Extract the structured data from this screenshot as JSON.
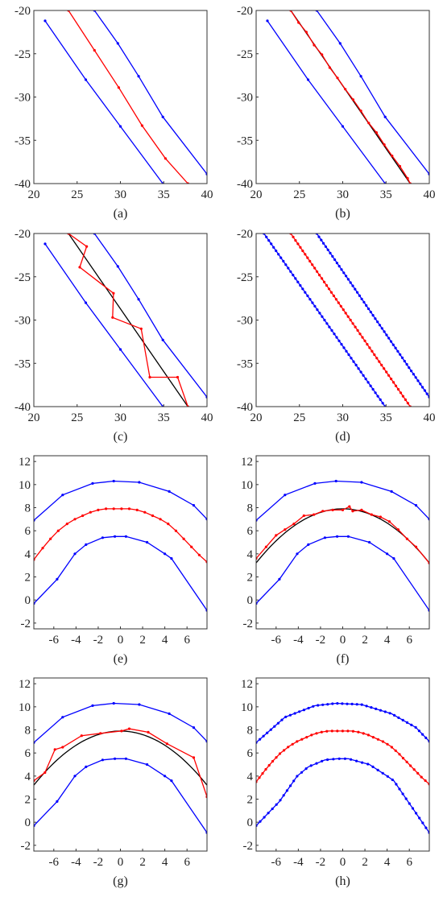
{
  "chart_data": [
    {
      "type": "line",
      "caption": "(a)",
      "xlim": [
        20,
        40
      ],
      "ylim": [
        -40,
        -20
      ],
      "xticks": [
        20,
        25,
        30,
        35,
        40
      ],
      "yticks": [
        -20,
        -25,
        -30,
        -35,
        -40
      ],
      "grid": false,
      "series": [
        {
          "color": "#0000ff",
          "x": [
            21.3,
            26.0,
            30.0,
            34.9
          ],
          "y": [
            -21.2,
            -28.0,
            -33.4,
            -40.0
          ],
          "markers": true
        },
        {
          "color": "#ff0000",
          "x": [
            24.0,
            27.0,
            29.8,
            32.5,
            35.2,
            37.8
          ],
          "y": [
            -20.0,
            -24.6,
            -28.9,
            -33.3,
            -37.1,
            -40.0
          ],
          "markers": true
        },
        {
          "color": "#0000ff",
          "x": [
            27.0,
            29.7,
            32.1,
            34.9,
            40.0
          ],
          "y": [
            -20.0,
            -23.8,
            -27.6,
            -32.3,
            -38.9
          ],
          "markers": true
        }
      ]
    },
    {
      "type": "line",
      "caption": "(b)",
      "xlim": [
        20,
        40
      ],
      "ylim": [
        -40,
        -20
      ],
      "xticks": [
        20,
        25,
        30,
        35,
        40
      ],
      "yticks": [
        -20,
        -25,
        -30,
        -35,
        -40
      ],
      "grid": false,
      "series": [
        {
          "color": "#0000ff",
          "x": [
            21.3,
            26.0,
            30.0,
            34.9
          ],
          "y": [
            -21.2,
            -28.0,
            -33.4,
            -40.0
          ],
          "markers": true
        },
        {
          "color": "#000000",
          "x": [
            24.0,
            37.8
          ],
          "y": [
            -20.0,
            -40.0
          ],
          "markers": false
        },
        {
          "color": "#ff0000",
          "x": [
            24.0,
            24.9,
            25.8,
            26.7,
            27.6,
            28.5,
            29.4,
            30.3,
            31.2,
            32.1,
            33.0,
            33.9,
            34.8,
            35.7,
            36.6,
            37.5,
            37.8
          ],
          "y": [
            -20.0,
            -21.4,
            -22.5,
            -24.0,
            -25.1,
            -26.6,
            -27.8,
            -29.1,
            -30.3,
            -31.6,
            -33.0,
            -34.1,
            -35.5,
            -36.8,
            -38.0,
            -39.4,
            -40.0
          ],
          "markers": true
        },
        {
          "color": "#0000ff",
          "x": [
            27.0,
            29.7,
            32.1,
            34.9,
            40.0
          ],
          "y": [
            -20.0,
            -23.8,
            -27.6,
            -32.3,
            -38.9
          ],
          "markers": true
        }
      ]
    },
    {
      "type": "line",
      "caption": "(c)",
      "xlim": [
        20,
        40
      ],
      "ylim": [
        -40,
        -20
      ],
      "xticks": [
        20,
        25,
        30,
        35,
        40
      ],
      "yticks": [
        -20,
        -25,
        -30,
        -35,
        -40
      ],
      "grid": false,
      "series": [
        {
          "color": "#0000ff",
          "x": [
            21.3,
            26.0,
            30.0,
            34.9
          ],
          "y": [
            -21.2,
            -28.0,
            -33.4,
            -40.0
          ],
          "markers": true
        },
        {
          "color": "#000000",
          "x": [
            24.0,
            37.8
          ],
          "y": [
            -20.0,
            -40.0
          ],
          "markers": false
        },
        {
          "color": "#ff0000",
          "x": [
            24.0,
            26.1,
            25.3,
            29.2,
            29.1,
            32.4,
            33.4,
            36.6,
            37.8
          ],
          "y": [
            -20.0,
            -21.5,
            -23.9,
            -26.9,
            -29.7,
            -31.0,
            -36.6,
            -36.6,
            -40.0
          ],
          "markers": true
        },
        {
          "color": "#0000ff",
          "x": [
            27.0,
            29.7,
            32.1,
            34.9,
            40.0
          ],
          "y": [
            -20.0,
            -23.8,
            -27.6,
            -32.3,
            -38.9
          ],
          "markers": true
        }
      ]
    },
    {
      "type": "line",
      "caption": "(d)",
      "xlim": [
        20,
        40
      ],
      "ylim": [
        -40,
        -20
      ],
      "xticks": [
        20,
        25,
        30,
        35,
        40
      ],
      "yticks": [
        -20,
        -25,
        -30,
        -35,
        -40
      ],
      "grid": false,
      "series": [
        {
          "color": "#0000ff",
          "x": [
            20.9,
            34.9
          ],
          "y": [
            -20.0,
            -40.0
          ],
          "markers": true,
          "dense": 50
        },
        {
          "color": "#ff0000",
          "x": [
            24.0,
            37.8
          ],
          "y": [
            -20.0,
            -40.0
          ],
          "markers": true,
          "dense": 50
        },
        {
          "color": "#0000ff",
          "x": [
            27.0,
            40.0
          ],
          "y": [
            -20.0,
            -38.9
          ],
          "markers": true,
          "dense": 50
        }
      ]
    },
    {
      "type": "line",
      "caption": "(e)",
      "xlim": [
        -7.8,
        7.8
      ],
      "ylim": [
        -2.5,
        12.5
      ],
      "xticks": [
        -6,
        -4,
        -2,
        0,
        2,
        4,
        6
      ],
      "yticks": [
        12,
        10,
        8,
        6,
        4,
        2,
        0,
        -2
      ],
      "grid": false,
      "series": [
        {
          "color": "#0000ff",
          "x": [
            -7.8,
            -5.2,
            -2.5,
            -0.6,
            1.7,
            4.4,
            6.6,
            7.8
          ],
          "y": [
            6.9,
            9.1,
            10.1,
            10.3,
            10.2,
            9.4,
            8.2,
            7.0
          ],
          "markers": true
        },
        {
          "color": "#ff0000",
          "x": [
            -7.8,
            -7.0,
            -6.3,
            -5.6,
            -4.8,
            -4.1,
            -3.4,
            -2.7,
            -2.0,
            -1.3,
            -0.6,
            0.1,
            0.8,
            1.5,
            2.2,
            2.9,
            3.6,
            4.3,
            5.0,
            5.7,
            6.4,
            7.1,
            7.8
          ],
          "y": [
            3.5,
            4.5,
            5.3,
            6.0,
            6.6,
            7.0,
            7.3,
            7.6,
            7.8,
            7.9,
            7.9,
            7.9,
            7.9,
            7.8,
            7.6,
            7.3,
            7.0,
            6.6,
            6.0,
            5.3,
            4.6,
            3.9,
            3.3
          ],
          "markers": true
        },
        {
          "color": "#0000ff",
          "x": [
            -7.8,
            -5.7,
            -4.1,
            -3.1,
            -1.6,
            -0.5,
            0.5,
            2.4,
            4.0,
            4.6,
            7.8
          ],
          "y": [
            -0.3,
            1.8,
            4.0,
            4.8,
            5.4,
            5.5,
            5.5,
            5.0,
            4.0,
            3.6,
            -0.9
          ],
          "markers": true
        }
      ]
    },
    {
      "type": "line",
      "caption": "(f)",
      "xlim": [
        -7.8,
        7.8
      ],
      "ylim": [
        -2.5,
        12.5
      ],
      "xticks": [
        -6,
        -4,
        -2,
        0,
        2,
        4,
        6
      ],
      "yticks": [
        12,
        10,
        8,
        6,
        4,
        2,
        0,
        -2
      ],
      "grid": false,
      "series": [
        {
          "color": "#0000ff",
          "x": [
            -7.8,
            -5.2,
            -2.5,
            -0.6,
            1.7,
            4.4,
            6.6,
            7.8
          ],
          "y": [
            6.9,
            9.1,
            10.1,
            10.3,
            10.2,
            9.4,
            8.2,
            7.0
          ],
          "markers": true
        },
        {
          "color": "#000000",
          "curve": "parabola",
          "vertex": [
            0,
            7.9
          ],
          "a": -0.077,
          "markers": false
        },
        {
          "color": "#ff0000",
          "x": [
            -7.8,
            -6.9,
            -6.0,
            -5.2,
            -4.4,
            -3.5,
            -2.6,
            -1.8,
            -0.9,
            0.0,
            0.6,
            0.9,
            1.7,
            2.6,
            3.4,
            4.2,
            5.0,
            5.8,
            6.6,
            7.8
          ],
          "y": [
            3.6,
            4.6,
            5.6,
            6.1,
            6.6,
            7.3,
            7.4,
            7.7,
            7.8,
            7.8,
            8.1,
            7.7,
            7.8,
            7.4,
            7.2,
            6.8,
            6.1,
            5.3,
            4.6,
            3.2
          ],
          "markers": true
        },
        {
          "color": "#0000ff",
          "x": [
            -7.8,
            -5.7,
            -4.1,
            -3.1,
            -1.6,
            -0.5,
            0.5,
            2.4,
            4.0,
            4.6,
            7.8
          ],
          "y": [
            -0.3,
            1.8,
            4.0,
            4.8,
            5.4,
            5.5,
            5.5,
            5.0,
            4.0,
            3.6,
            -0.9
          ],
          "markers": true
        }
      ]
    },
    {
      "type": "line",
      "caption": "(g)",
      "xlim": [
        -7.8,
        7.8
      ],
      "ylim": [
        -2.5,
        12.5
      ],
      "xticks": [
        -6,
        -4,
        -2,
        0,
        2,
        4,
        6
      ],
      "yticks": [
        12,
        10,
        8,
        6,
        4,
        2,
        0,
        -2
      ],
      "grid": false,
      "series": [
        {
          "color": "#0000ff",
          "x": [
            -7.8,
            -5.2,
            -2.5,
            -0.6,
            1.7,
            4.4,
            6.6,
            7.8
          ],
          "y": [
            6.9,
            9.1,
            10.1,
            10.3,
            10.2,
            9.4,
            8.2,
            7.0
          ],
          "markers": true
        },
        {
          "color": "#000000",
          "curve": "parabola",
          "vertex": [
            0,
            7.9
          ],
          "a": -0.077,
          "markers": false
        },
        {
          "color": "#ff0000",
          "x": [
            -7.8,
            -6.8,
            -5.9,
            -5.2,
            -3.5,
            -1.8,
            0.1,
            0.8,
            2.5,
            4.2,
            6.6,
            7.8
          ],
          "y": [
            3.6,
            4.3,
            6.3,
            6.5,
            7.5,
            7.7,
            7.9,
            8.1,
            7.8,
            6.8,
            5.6,
            2.2
          ],
          "markers": true
        },
        {
          "color": "#0000ff",
          "x": [
            -7.8,
            -5.7,
            -4.1,
            -3.1,
            -1.6,
            -0.5,
            0.5,
            2.4,
            4.0,
            4.6,
            7.8
          ],
          "y": [
            -0.3,
            1.8,
            4.0,
            4.8,
            5.4,
            5.5,
            5.5,
            5.0,
            4.0,
            3.6,
            -0.9
          ],
          "markers": true
        }
      ]
    },
    {
      "type": "line",
      "caption": "(h)",
      "xlim": [
        -7.8,
        7.8
      ],
      "ylim": [
        -2.5,
        12.5
      ],
      "xticks": [
        -6,
        -4,
        -2,
        0,
        2,
        4,
        6
      ],
      "yticks": [
        12,
        10,
        8,
        6,
        4,
        2,
        0,
        -2
      ],
      "grid": false,
      "series": [
        {
          "color": "#0000ff",
          "x": [
            -7.8,
            -5.2,
            -2.5,
            -0.6,
            1.7,
            4.4,
            6.6,
            7.8
          ],
          "y": [
            6.9,
            9.1,
            10.1,
            10.3,
            10.2,
            9.4,
            8.2,
            7.0
          ],
          "markers": true,
          "dense": 40
        },
        {
          "color": "#ff0000",
          "x": [
            -7.8,
            -7.0,
            -6.3,
            -5.6,
            -4.8,
            -4.1,
            -3.4,
            -2.7,
            -2.0,
            -1.3,
            -0.6,
            0.1,
            0.8,
            1.5,
            2.2,
            2.9,
            3.6,
            4.3,
            5.0,
            5.7,
            6.4,
            7.1,
            7.8
          ],
          "y": [
            3.5,
            4.5,
            5.3,
            6.0,
            6.6,
            7.0,
            7.3,
            7.6,
            7.8,
            7.9,
            7.9,
            7.9,
            7.9,
            7.8,
            7.6,
            7.3,
            7.0,
            6.6,
            6.0,
            5.3,
            4.6,
            3.9,
            3.3
          ],
          "markers": true,
          "dense": 40
        },
        {
          "color": "#0000ff",
          "x": [
            -7.8,
            -5.7,
            -4.1,
            -3.1,
            -1.6,
            -0.5,
            0.5,
            2.4,
            4.0,
            4.6,
            7.8
          ],
          "y": [
            -0.3,
            1.8,
            4.0,
            4.8,
            5.4,
            5.5,
            5.5,
            5.0,
            4.0,
            3.6,
            -0.9
          ],
          "markers": true,
          "dense": 40
        }
      ]
    }
  ]
}
